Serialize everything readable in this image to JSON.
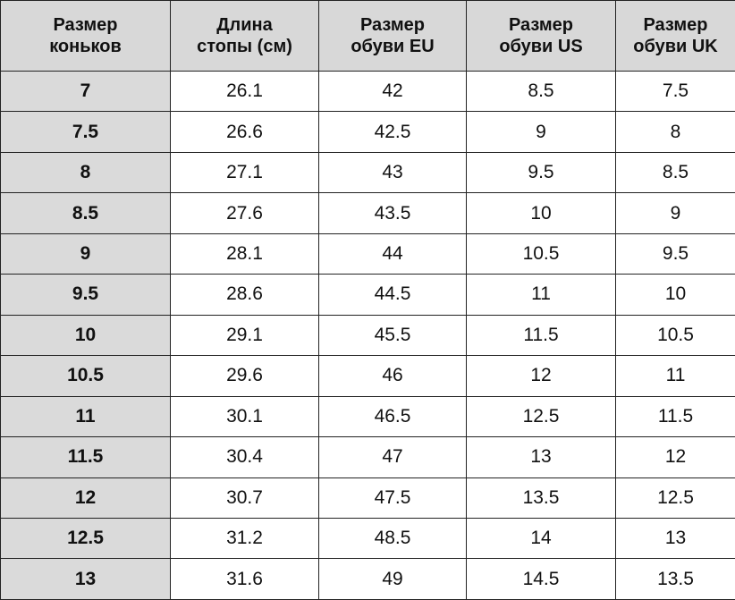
{
  "table": {
    "header": [
      [
        "Размер",
        "коньков"
      ],
      [
        "Длина",
        "стопы (см)"
      ],
      [
        "Размер",
        "обуви EU"
      ],
      [
        "Размер",
        "обуви US"
      ],
      [
        "Размер",
        "обуви UK"
      ]
    ],
    "rows": [
      [
        "7",
        "26.1",
        "42",
        "8.5",
        "7.5"
      ],
      [
        "7.5",
        "26.6",
        "42.5",
        "9",
        "8"
      ],
      [
        "8",
        "27.1",
        "43",
        "9.5",
        "8.5"
      ],
      [
        "8.5",
        "27.6",
        "43.5",
        "10",
        "9"
      ],
      [
        "9",
        "28.1",
        "44",
        "10.5",
        "9.5"
      ],
      [
        "9.5",
        "28.6",
        "44.5",
        "11",
        "10"
      ],
      [
        "10",
        "29.1",
        "45.5",
        "11.5",
        "10.5"
      ],
      [
        "10.5",
        "29.6",
        "46",
        "12",
        "11"
      ],
      [
        "11",
        "30.1",
        "46.5",
        "12.5",
        "11.5"
      ],
      [
        "11.5",
        "30.4",
        "47",
        "13",
        "12"
      ],
      [
        "12",
        "30.7",
        "47.5",
        "13.5",
        "12.5"
      ],
      [
        "12.5",
        "31.2",
        "48.5",
        "14",
        "13"
      ],
      [
        "13",
        "31.6",
        "49",
        "14.5",
        "13.5"
      ]
    ]
  }
}
